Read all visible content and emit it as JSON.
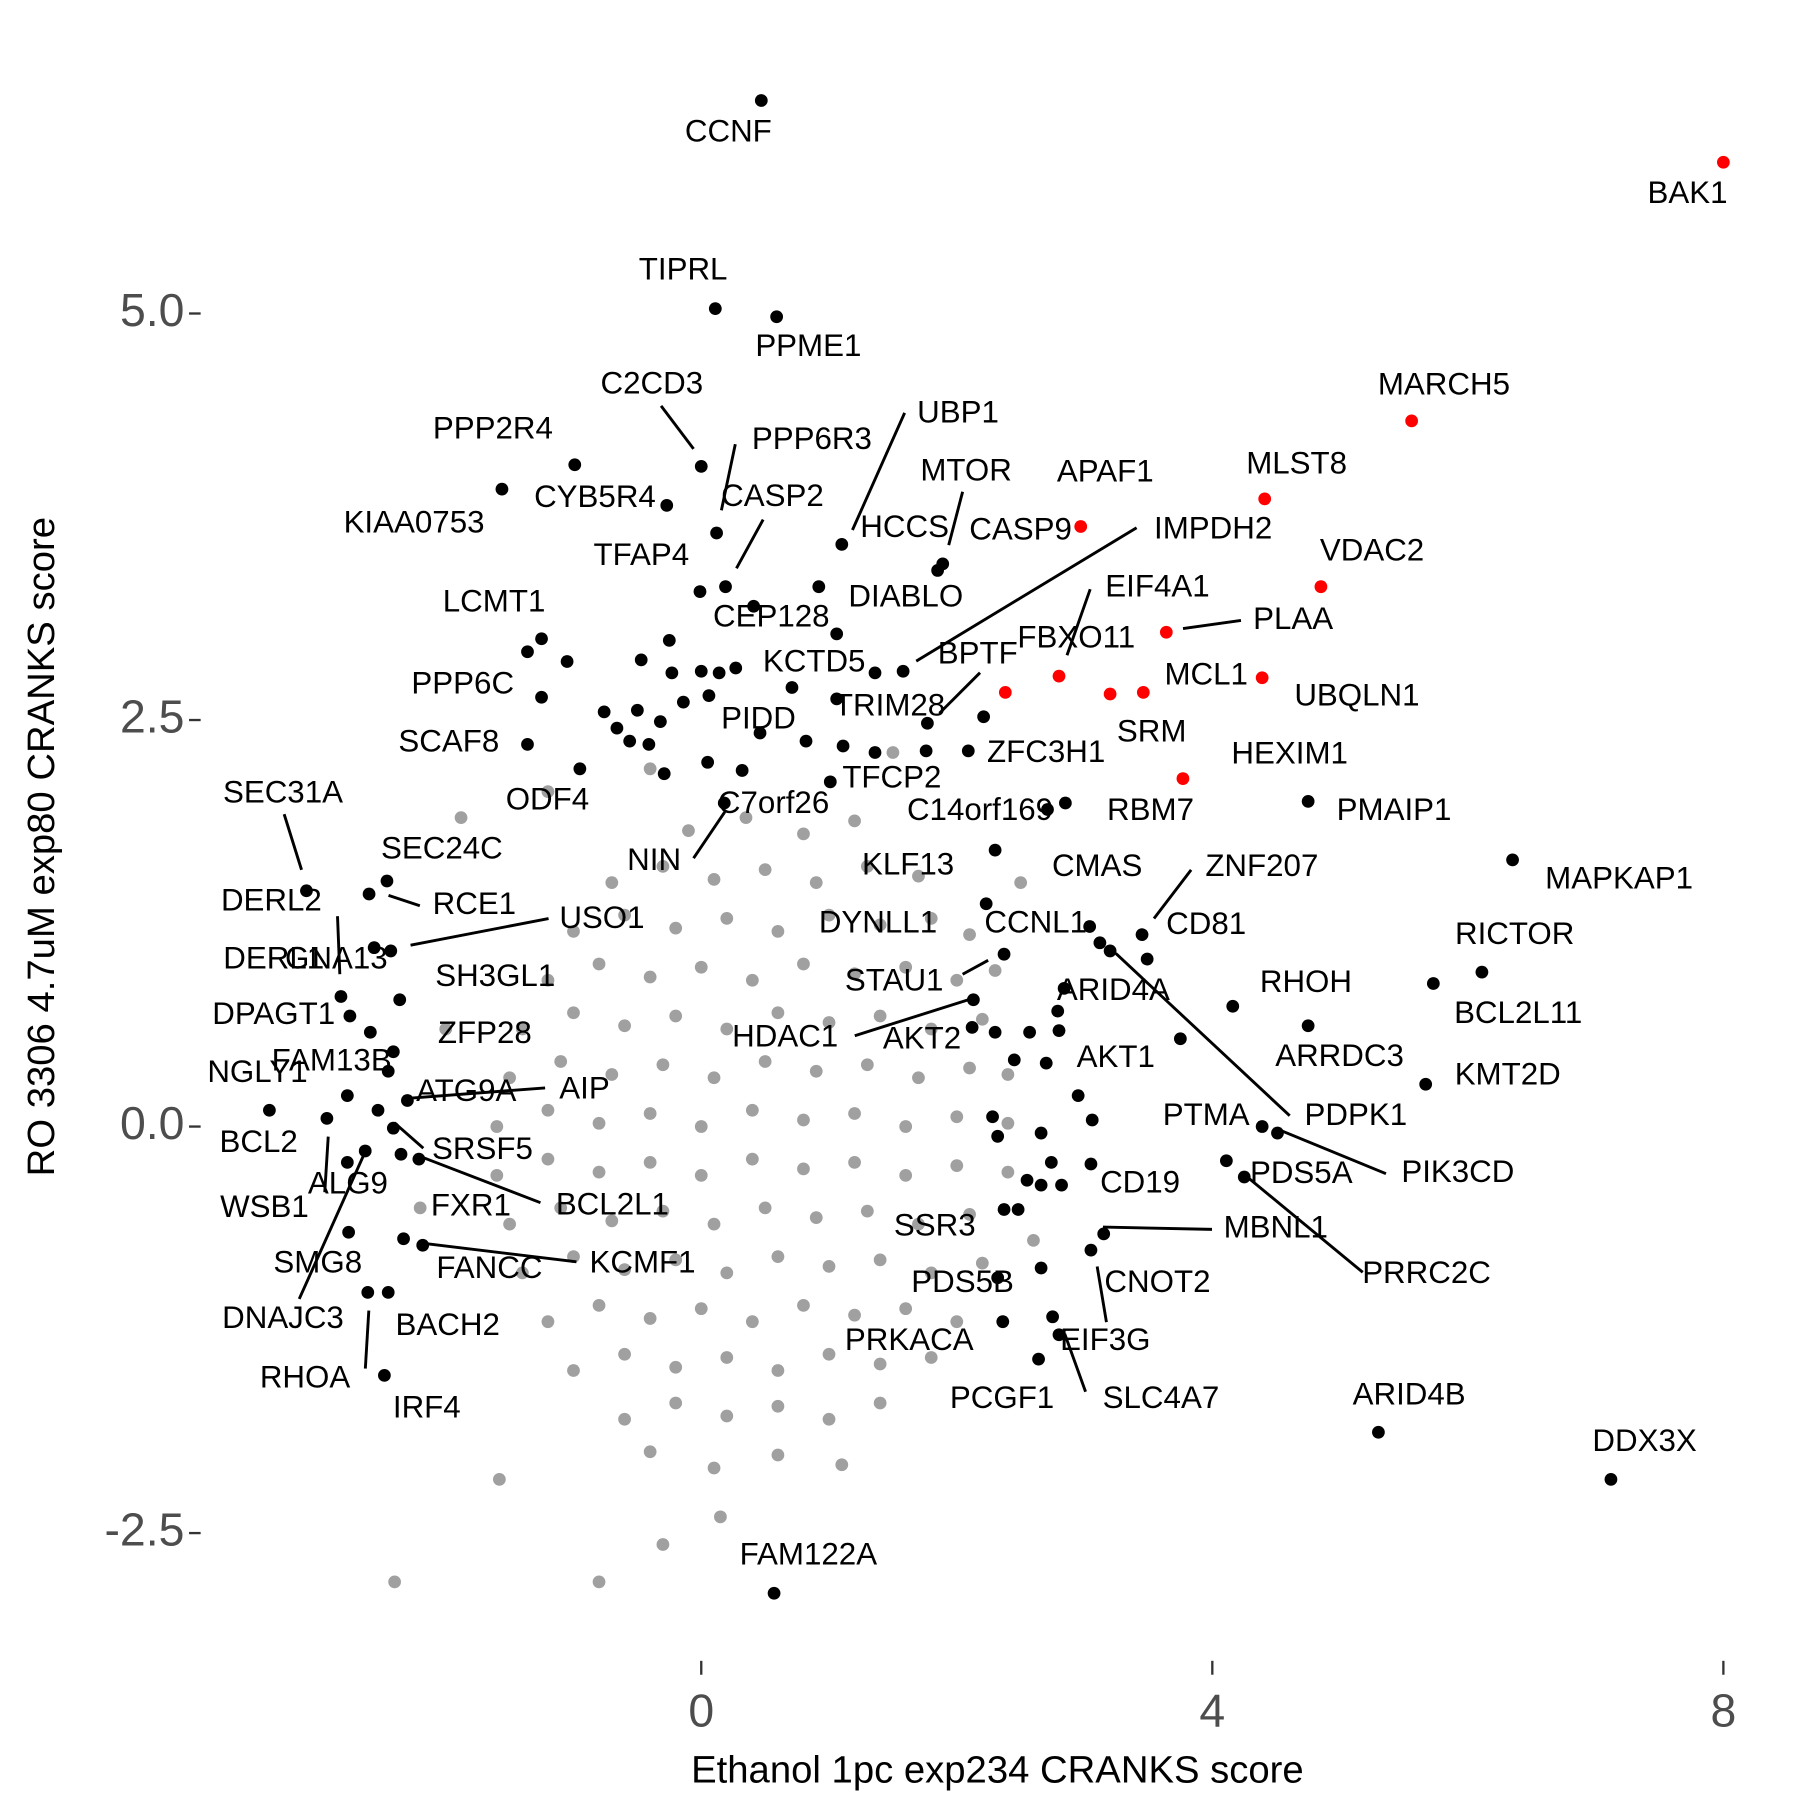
{
  "chart_data": {
    "type": "scatter",
    "xlabel": "Ethanol 1pc exp234 CRANKS score",
    "ylabel": "RO 3306 4.7uM exp80 CRANKS score",
    "xlim": [
      -3.9,
      8.4
    ],
    "ylim": [
      -3.2,
      6.5
    ],
    "xticks": [
      0,
      4,
      8
    ],
    "yticks": [
      {
        "value": -2.5,
        "label": "-2.5"
      },
      {
        "value": 0,
        "label": "0.0"
      },
      {
        "value": 2.5,
        "label": "2.5"
      },
      {
        "value": 5,
        "label": "5.0"
      }
    ],
    "series": [
      {
        "color": "#a0a0a0",
        "x": [
          -0.1,
          0.35,
          0.8,
          1.2,
          -0.7,
          -0.3,
          0.1,
          0.5,
          0.9,
          1.3,
          1.7,
          -1.0,
          -0.6,
          -0.2,
          0.2,
          0.6,
          1.0,
          1.4,
          1.8,
          2.1,
          -1.2,
          -0.8,
          -0.4,
          0.0,
          0.4,
          0.8,
          1.2,
          1.6,
          2.0,
          2.3,
          -1.4,
          -1.0,
          -0.6,
          -0.2,
          0.2,
          0.6,
          1.0,
          1.4,
          1.8,
          2.2,
          -1.5,
          -1.1,
          -0.7,
          -0.3,
          0.1,
          0.5,
          0.9,
          1.3,
          1.7,
          2.1,
          2.4,
          -1.6,
          -1.2,
          -0.8,
          -0.4,
          0.0,
          0.4,
          0.8,
          1.2,
          1.6,
          2.0,
          2.4,
          -1.6,
          -1.2,
          -0.8,
          -0.4,
          0.0,
          0.4,
          0.8,
          1.2,
          1.6,
          2.0,
          2.4,
          -1.5,
          -1.1,
          -0.7,
          -0.3,
          0.1,
          0.5,
          0.9,
          1.3,
          1.7,
          2.1,
          -1.4,
          -1.0,
          -0.6,
          -0.2,
          0.2,
          0.6,
          1.0,
          1.4,
          1.8,
          2.2,
          -1.2,
          -0.8,
          -0.4,
          0.0,
          0.4,
          0.8,
          1.2,
          1.6,
          2.0,
          -1.0,
          -0.6,
          -0.2,
          0.2,
          0.6,
          1.0,
          1.4,
          1.8,
          -0.6,
          -0.2,
          0.2,
          0.6,
          1.0,
          1.4,
          -0.4,
          0.1,
          0.6,
          1.1,
          -1.58,
          -1.88,
          -1.2,
          -2.4,
          -0.8,
          -0.3,
          0.15,
          -2.0,
          -2.2,
          2.6,
          2.5,
          1.5,
          -0.4
        ],
        "y": [
          1.82,
          1.9,
          1.8,
          1.88,
          1.5,
          1.6,
          1.52,
          1.58,
          1.5,
          1.6,
          1.54,
          1.2,
          1.3,
          1.22,
          1.28,
          1.2,
          1.3,
          1.24,
          1.28,
          1.18,
          0.9,
          1.0,
          0.92,
          0.98,
          0.9,
          1.0,
          0.94,
          0.98,
          0.9,
          0.96,
          0.6,
          0.7,
          0.62,
          0.68,
          0.6,
          0.7,
          0.64,
          0.68,
          0.6,
          0.66,
          0.3,
          0.4,
          0.32,
          0.38,
          0.3,
          0.4,
          0.34,
          0.38,
          0.3,
          0.36,
          0.32,
          0.0,
          0.1,
          0.02,
          0.08,
          0.0,
          0.1,
          0.04,
          0.08,
          0.0,
          0.06,
          0.02,
          -0.3,
          -0.2,
          -0.28,
          -0.22,
          -0.3,
          -0.2,
          -0.26,
          -0.22,
          -0.3,
          -0.24,
          -0.28,
          -0.6,
          -0.5,
          -0.58,
          -0.52,
          -0.6,
          -0.5,
          -0.56,
          -0.52,
          -0.6,
          -0.54,
          -0.9,
          -0.8,
          -0.88,
          -0.82,
          -0.9,
          -0.8,
          -0.86,
          -0.82,
          -0.9,
          -0.84,
          -1.2,
          -1.1,
          -1.18,
          -1.12,
          -1.2,
          -1.1,
          -1.16,
          -1.12,
          -1.2,
          -1.5,
          -1.4,
          -1.48,
          -1.42,
          -1.5,
          -1.4,
          -1.46,
          -1.42,
          -1.8,
          -1.7,
          -1.78,
          -1.72,
          -1.8,
          -1.7,
          -2.0,
          -2.1,
          -2.02,
          -2.08,
          -2.17,
          1.9,
          2.06,
          -2.8,
          -2.8,
          -2.57,
          -2.4,
          0.6,
          -0.5,
          -0.7,
          1.5,
          2.3,
          2.2
        ]
      },
      {
        "color": "#000000",
        "labels": [
          "CCNF",
          "TIPRL",
          "PPME1",
          "C2CD3",
          "PPP6R3",
          "PPP2R4",
          "KIAA0753",
          "CYB5R4",
          "CASP2",
          "UBP1",
          "MTOR",
          "HCCS",
          "CASP9",
          "IMPDH2",
          "TFAP4",
          "CEP128",
          "DIABLO",
          "LCMT1",
          "KCTD5",
          "TRIM28",
          "PPP6C",
          "PIDD",
          "SCAF8",
          "ZFC3H1",
          "TFCP2",
          "C14orf169",
          "RBM7",
          "PMAIP1",
          "C7orf26",
          "NIN",
          "ODF4",
          "KLF13",
          "CMAS",
          "ZNF207",
          "MAPKAP1",
          "SEC31A",
          "SEC24C",
          "RCE1",
          "DERL2",
          "USO1",
          "DYNLL1",
          "CCNL1",
          "CD81",
          "RICTOR",
          "DERL1",
          "GNA13",
          "SH3GL1",
          "STAU1",
          "RHOH",
          "BCL2L11",
          "ARID4A",
          "DPAGT1",
          "HDAC1",
          "AKT2",
          "ARRDC3",
          "ZFP28",
          "FAM13B",
          "AKT1",
          "KMT2D",
          "NGLY1",
          "ATG9A",
          "AIP",
          "BCL2",
          "PDPK1",
          "PTMA",
          "SRSF5",
          "WSB1",
          "ALG9",
          "PIK3CD",
          "PDS5A",
          "CD19",
          "FXR1",
          "BCL2L1",
          "MBNL1",
          "SMG8",
          "SSR3",
          "PRRC2C",
          "KCMF1",
          "FANCC",
          "CNOT2",
          "PDS5B",
          "DNAJC3",
          "BACH2",
          "RHOA",
          "IRF4",
          "PRKACA",
          "EIF3G",
          "SLC4A7",
          "PCGF1",
          "ARID4B",
          "DDX3X",
          "FAM122A",
          "BPTF",
          null,
          null,
          null,
          null,
          null,
          null,
          null,
          null,
          null,
          null,
          null,
          null,
          null,
          null,
          null,
          null,
          null,
          null,
          null,
          null,
          null,
          null,
          null,
          null,
          null,
          null,
          null,
          null,
          null,
          null,
          null,
          null,
          null,
          null,
          null,
          null,
          null,
          null,
          null,
          null
        ],
        "x": [
          0.47,
          0.11,
          0.59,
          0.0,
          0.12,
          -0.99,
          -1.56,
          -0.27,
          0.19,
          1.1,
          1.85,
          0.92,
          1.89,
          1.58,
          -0.01,
          0.41,
          1.06,
          -1.25,
          0.71,
          1.77,
          -1.25,
          0.46,
          -1.36,
          2.09,
          1.11,
          2.85,
          2.71,
          4.75,
          0.32,
          0.18,
          -0.95,
          2.3,
          3.12,
          3.45,
          6.35,
          -3.09,
          -2.46,
          -2.6,
          -2.82,
          -2.43,
          2.23,
          3.04,
          3.49,
          6.11,
          -2.56,
          -2.59,
          -2.36,
          2.37,
          4.16,
          5.73,
          2.79,
          -2.75,
          2.13,
          2.12,
          4.75,
          -2.41,
          -2.45,
          2.95,
          5.67,
          -2.77,
          -2.53,
          -2.3,
          -3.38,
          3.2,
          4.39,
          -2.41,
          -2.93,
          -2.77,
          4.51,
          4.11,
          3.05,
          -2.35,
          -2.21,
          3.15,
          -2.76,
          2.37,
          4.25,
          -2.18,
          -2.33,
          3.05,
          2.66,
          -2.63,
          -2.45,
          -2.61,
          -2.48,
          2.36,
          2.75,
          2.8,
          2.64,
          5.3,
          7.12,
          0.57,
          2.21,
          -0.25,
          -0.47,
          -0.23,
          0.0,
          0.14,
          0.27,
          -0.5,
          -0.32,
          -0.14,
          0.06,
          -0.41,
          -0.29,
          0.05,
          0.82,
          1.06,
          1.36,
          1.01,
          1.36,
          1.76,
          2.3,
          2.45,
          2.7,
          2.8,
          2.84,
          2.57,
          2.28,
          2.32,
          2.66,
          2.74,
          2.55,
          2.66,
          2.82,
          2.48,
          2.32,
          3.06,
          3.75,
          -1.36,
          -1.05,
          -0.76,
          -0.66,
          -0.56
        ],
        "y": [
          6.31,
          5.03,
          4.98,
          4.06,
          3.65,
          4.07,
          3.92,
          3.82,
          3.32,
          3.58,
          3.42,
          3.32,
          3.46,
          2.8,
          3.29,
          3.2,
          3.03,
          3.0,
          2.7,
          2.48,
          2.64,
          2.42,
          2.35,
          2.31,
          2.34,
          1.99,
          1.95,
          2.0,
          2.19,
          1.99,
          2.2,
          1.7,
          1.13,
          1.18,
          1.64,
          1.45,
          1.51,
          1.43,
          0.8,
          1.08,
          1.37,
          1.23,
          1.03,
          0.95,
          1.1,
          0.58,
          0.78,
          1.06,
          0.74,
          0.88,
          0.71,
          0.68,
          0.78,
          0.61,
          0.62,
          0.46,
          0.34,
          0.19,
          0.26,
          0.19,
          0.1,
          0.16,
          0.1,
          1.08,
          0.0,
          -0.01,
          0.05,
          -0.22,
          -0.04,
          -0.21,
          -0.23,
          -0.17,
          -0.2,
          -0.66,
          -0.65,
          -0.51,
          -0.31,
          -0.73,
          -0.69,
          -0.76,
          -0.87,
          -0.15,
          -1.02,
          -1.02,
          -1.53,
          -1.2,
          -1.17,
          -1.28,
          -1.43,
          -1.88,
          -2.17,
          -2.87,
          2.52,
          2.99,
          2.87,
          2.79,
          2.8,
          2.79,
          2.82,
          2.56,
          2.49,
          2.61,
          2.65,
          2.35,
          2.17,
          2.24,
          2.37,
          2.63,
          2.79,
          2.12,
          2.3,
          2.31,
          0.58,
          0.41,
          0.39,
          0.59,
          0.85,
          0.58,
          0.06,
          -0.06,
          -0.04,
          -0.22,
          -0.33,
          -0.36,
          -0.36,
          -0.51,
          -0.93,
          0.04,
          0.54,
          2.92,
          2.86,
          2.55,
          2.45,
          2.37
        ]
      },
      {
        "color": "#ff0000",
        "labels": [
          "BAK1",
          "MARCH5",
          "MLST8",
          "APAF1",
          "VDAC2",
          "PLAA",
          "EIF4A1",
          "FBXO11",
          "MCL1",
          "UBQLN1",
          "SRM",
          "HEXIM1"
        ],
        "x": [
          8.0,
          5.56,
          4.41,
          2.97,
          4.85,
          3.64,
          2.8,
          2.38,
          3.46,
          4.39,
          3.2,
          3.77
        ],
        "y": [
          5.93,
          4.34,
          3.86,
          3.69,
          3.32,
          3.04,
          2.77,
          2.67,
          2.67,
          2.76,
          2.66,
          2.14
        ]
      }
    ]
  }
}
